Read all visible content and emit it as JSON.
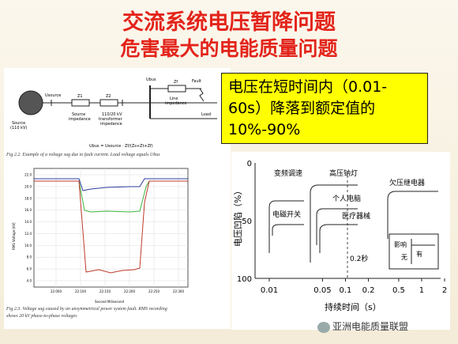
{
  "title": {
    "line1": "交流系统电压暂降问题",
    "line2": "危害最大的电能质量问题"
  },
  "callout": {
    "line1": "电压在短时间内（0.01-",
    "line2": "60s）降落到额定值的",
    "line3": "10%-90%"
  },
  "diagram": {
    "source_label": "Source",
    "source_kv": "(110 kV)",
    "u_source": "Usource",
    "z1": "Z1",
    "z2": "Z2",
    "zf": "Zf",
    "source_impedance_1": "Source",
    "source_impedance_2": "impedance",
    "transformer_1": "110/20 kV",
    "transformer_2": "transformer",
    "transformer_3": "impedance",
    "line_impedance_1": "Line",
    "line_impedance_2": "impedance",
    "fault": "Fault",
    "load": "Load",
    "u_bus": "Ubus",
    "formula": "Ubus = Usource · Zf/(Zs+Zt+Zf)",
    "fig22_caption": "Fig 2.2. Example of a voltage sag due to fault current. Load voltage equals Ubus"
  },
  "sag_plot": {
    "ylabel": "RMS Voltage [kV]",
    "xlabel": "Second Milisecond",
    "yticks": [
      "22.0",
      "20.0",
      "18.0",
      "16.0",
      "14.0",
      "12.0",
      "10.0",
      "8.0",
      "6.0",
      "4.0"
    ],
    "xticks": [
      "22:000",
      "22:100",
      "22:150",
      "22:200",
      "22:250",
      "22:300"
    ],
    "fig23_caption_1": "Fig 2.3. Voltage sag caused by an unsymmetrical power system fault. RMS recording",
    "fig23_caption_2": "shows 20 kV phase-to-phase voltages"
  },
  "chart_data": {
    "type": "line",
    "title": "",
    "ylabel": "电压凹陷（%）",
    "xlabel": "持续时间（s）",
    "yticks": [
      "0",
      "50",
      "100"
    ],
    "xticks": [
      "0.01",
      "0.05",
      "0.1",
      "0.2",
      "0.5",
      "1",
      "2"
    ],
    "annotation_02": "0.2秒",
    "equipment": [
      {
        "name": "变频调速"
      },
      {
        "name": "高压钠灯"
      },
      {
        "name": "个人电脑"
      },
      {
        "name": "欠压继电器"
      },
      {
        "name": "电磁开关"
      },
      {
        "name": "医疗器械"
      }
    ],
    "legend": {
      "affect": "影响",
      "none": "无",
      "have": "有"
    }
  },
  "watermark": "亚洲电能质量联盟",
  "colors": {
    "title": "#e3241b",
    "callout_bg": "#ffff00",
    "sag_red": "#c0392b",
    "sag_green": "#3cb43c",
    "sag_blue": "#2e3c9e"
  }
}
